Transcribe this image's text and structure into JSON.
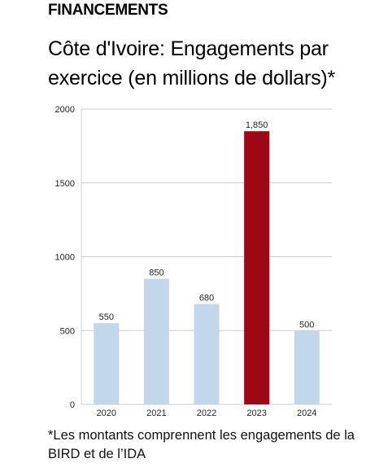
{
  "header": {
    "section_title": "FINANCEMENTS",
    "chart_title": "Côte d'Ivoire: Engagements par exercice (en millions de dollars)*"
  },
  "footnote": "*Les montants comprennent les engagements de la BIRD et de l’IDA",
  "colors": {
    "bar_default": "#c2d7ea",
    "bar_highlight": "#9d0814",
    "grid": "#cccccc",
    "axis_text": "#222222"
  },
  "chart_data": {
    "type": "bar",
    "title": "Côte d'Ivoire: Engagements par exercice (en millions de dollars)*",
    "xlabel": "",
    "ylabel": "",
    "categories": [
      "2020",
      "2021",
      "2022",
      "2023",
      "2024"
    ],
    "values": [
      550,
      850,
      680,
      1850,
      500
    ],
    "value_labels": [
      "550",
      "850",
      "680",
      "1,850",
      "500"
    ],
    "highlight_category": "2023",
    "ylim": [
      0,
      2000
    ],
    "yticks": [
      0,
      500,
      1000,
      1500,
      2000
    ],
    "ytick_labels": [
      "0",
      "500",
      "1000",
      "1500",
      "2000"
    ],
    "grid": true,
    "legend": "none"
  }
}
